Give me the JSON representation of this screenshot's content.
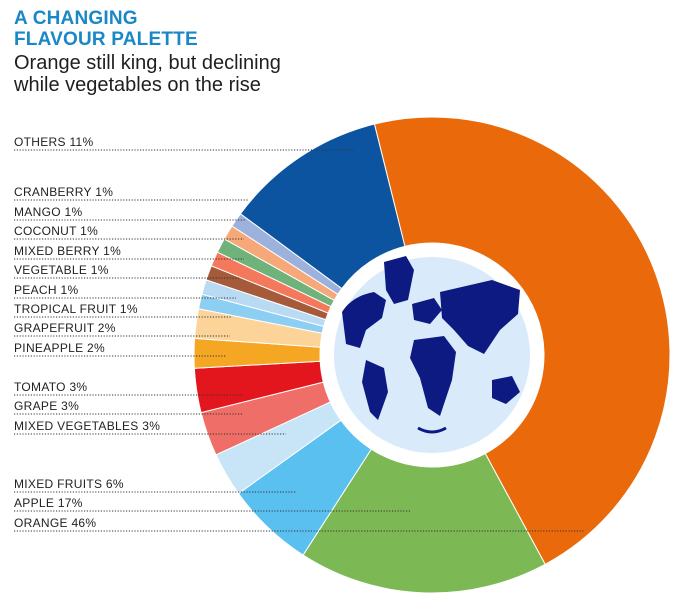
{
  "header": {
    "title_line1": "A CHANGING",
    "title_line2": "FLAVOUR PALETTE",
    "subtitle_line1": "Orange still king, but declining",
    "subtitle_line2": "while vegetables on the rise"
  },
  "colors": {
    "title": "#1a87c6",
    "globe_water": "#d9ebfb",
    "globe_land": "#0c1a82",
    "leader": "#333333"
  },
  "chart_data": {
    "type": "pie",
    "variant": "donut",
    "title": "A CHANGING FLAVOUR PALETTE",
    "subtitle": "Orange still king, but declining while vegetables on the rise",
    "slices": [
      {
        "label": "ORANGE 46%",
        "name": "ORANGE",
        "value": 46,
        "color": "#ea6a0b"
      },
      {
        "label": "APPLE 17%",
        "name": "APPLE",
        "value": 17,
        "color": "#7cb854"
      },
      {
        "label": "MIXED FRUITS 6%",
        "name": "MIXED FRUITS",
        "value": 6,
        "color": "#5ac0ef"
      },
      {
        "label": "MIXED VEGETABLES 3%",
        "name": "MIXED VEGETABLES",
        "value": 3,
        "color": "#c8e5f7"
      },
      {
        "label": "GRAPE 3%",
        "name": "GRAPE",
        "value": 3,
        "color": "#ef6e68"
      },
      {
        "label": "TOMATO 3%",
        "name": "TOMATO",
        "value": 3,
        "color": "#e3161d"
      },
      {
        "label": "PINEAPPLE 2%",
        "name": "PINEAPPLE",
        "value": 2,
        "color": "#f5a623"
      },
      {
        "label": "GRAPEFRUIT 2%",
        "name": "GRAPEFRUIT",
        "value": 2,
        "color": "#fcd49a"
      },
      {
        "label": "TROPICAL FRUIT 1%",
        "name": "TROPICAL FRUIT",
        "value": 1,
        "color": "#8ccff3"
      },
      {
        "label": "PEACH 1%",
        "name": "PEACH",
        "value": 1,
        "color": "#b9daf2"
      },
      {
        "label": "VEGETABLE 1%",
        "name": "VEGETABLE",
        "value": 1,
        "color": "#a55a3a"
      },
      {
        "label": "MIXED BERRY 1%",
        "name": "MIXED BERRY",
        "value": 1,
        "color": "#f3785c"
      },
      {
        "label": "COCONUT 1%",
        "name": "COCONUT",
        "value": 1,
        "color": "#6fb27a"
      },
      {
        "label": "MANGO 1%",
        "name": "MANGO",
        "value": 1,
        "color": "#f7a878"
      },
      {
        "label": "CRANBERRY 1%",
        "name": "CRANBERRY",
        "value": 1,
        "color": "#9db1dd"
      },
      {
        "label": "OTHERS 11%",
        "name": "OTHERS",
        "value": 11,
        "color": "#0d54a0"
      }
    ]
  }
}
